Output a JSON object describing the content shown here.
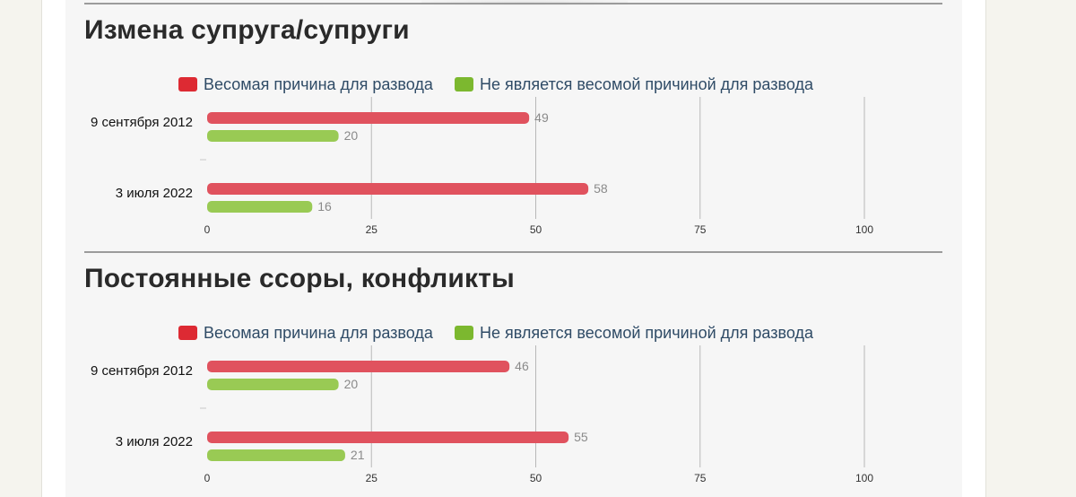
{
  "colors": {
    "weighty": "#e0525e",
    "weighty_legend": "#dd2a33",
    "not_weighty": "#99ca54",
    "not_weighty_legend": "#7cb82f",
    "grid": "#b8b8b8",
    "value_label": "#8a8a8a",
    "tick_label": "#333333",
    "category_label": "#111111"
  },
  "legend": {
    "weighty": "Весомая причина для развода",
    "not_weighty": "Не является весомой причиной для развода"
  },
  "chart_data": [
    {
      "type": "bar",
      "orientation": "horizontal",
      "title": "Измена супруга/супруги",
      "categories": [
        "9 сентября 2012",
        "3 июля 2022"
      ],
      "series": [
        {
          "name": "Весомая причина для развода",
          "values": [
            49,
            58
          ]
        },
        {
          "name": "Не является весомой причиной для развода",
          "values": [
            20,
            16
          ]
        }
      ],
      "xlim": [
        0,
        100
      ],
      "xticks": [
        0,
        25,
        50,
        75,
        100
      ],
      "grid": true,
      "legend_position": "top"
    },
    {
      "type": "bar",
      "orientation": "horizontal",
      "title": "Постоянные ссоры, конфликты",
      "categories": [
        "9 сентября 2012",
        "3 июля 2022"
      ],
      "series": [
        {
          "name": "Весомая причина для развода",
          "values": [
            46,
            55
          ]
        },
        {
          "name": "Не является весомой причиной для развода",
          "values": [
            20,
            21
          ]
        }
      ],
      "xlim": [
        0,
        100
      ],
      "xticks": [
        0,
        25,
        50,
        75,
        100
      ],
      "grid": true,
      "legend_position": "top"
    }
  ]
}
